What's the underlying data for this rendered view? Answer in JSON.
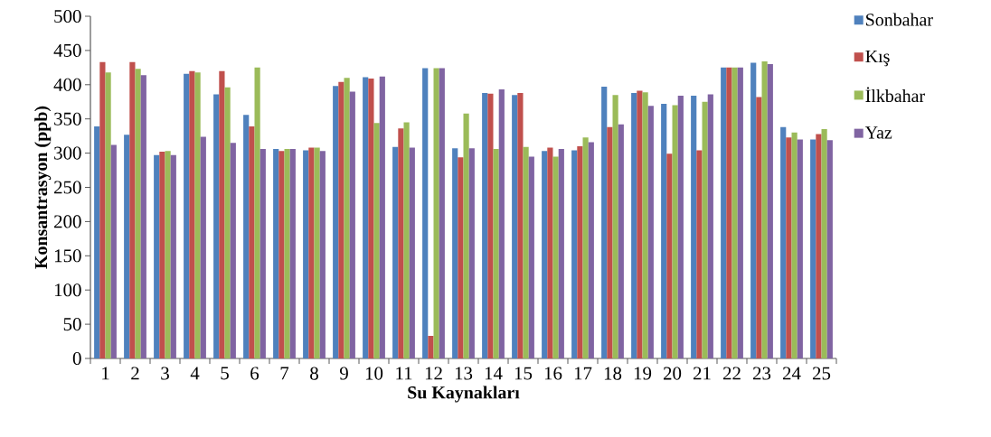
{
  "chart_data": {
    "type": "bar",
    "xlabel": "Su Kaynakları",
    "ylabel": "Konsantrasyon (ppb)",
    "categories": [
      "1",
      "2",
      "3",
      "4",
      "5",
      "6",
      "7",
      "8",
      "9",
      "10",
      "11",
      "12",
      "13",
      "14",
      "15",
      "16",
      "17",
      "18",
      "19",
      "20",
      "21",
      "22",
      "23",
      "24",
      "25"
    ],
    "series": [
      {
        "name": "Sonbahar",
        "color": "#4f81bd",
        "values": [
          339,
          327,
          297,
          416,
          386,
          356,
          306,
          304,
          398,
          411,
          309,
          424,
          307,
          388,
          385,
          303,
          304,
          397,
          388,
          372,
          384,
          425,
          432,
          338,
          320
        ]
      },
      {
        "name": "Kış",
        "color": "#c0504d",
        "values": [
          433,
          433,
          302,
          420,
          420,
          339,
          303,
          308,
          404,
          409,
          336,
          33,
          294,
          387,
          388,
          308,
          310,
          338,
          391,
          299,
          304,
          425,
          382,
          323,
          328
        ]
      },
      {
        "name": "İlkbahar",
        "color": "#9bbb59",
        "values": [
          418,
          423,
          303,
          418,
          396,
          425,
          306,
          308,
          410,
          344,
          345,
          424,
          358,
          306,
          309,
          295,
          323,
          385,
          389,
          370,
          375,
          425,
          434,
          330,
          335
        ]
      },
      {
        "name": "Yaz",
        "color": "#8064a2",
        "values": [
          312,
          414,
          297,
          324,
          315,
          306,
          306,
          303,
          390,
          412,
          308,
          424,
          307,
          393,
          295,
          306,
          316,
          342,
          369,
          384,
          386,
          425,
          430,
          320,
          319
        ]
      }
    ],
    "ylim": [
      0,
      500
    ],
    "yticks": [
      0,
      50,
      100,
      150,
      200,
      250,
      300,
      350,
      400,
      450,
      500
    ],
    "grid": false,
    "legend": "right"
  }
}
